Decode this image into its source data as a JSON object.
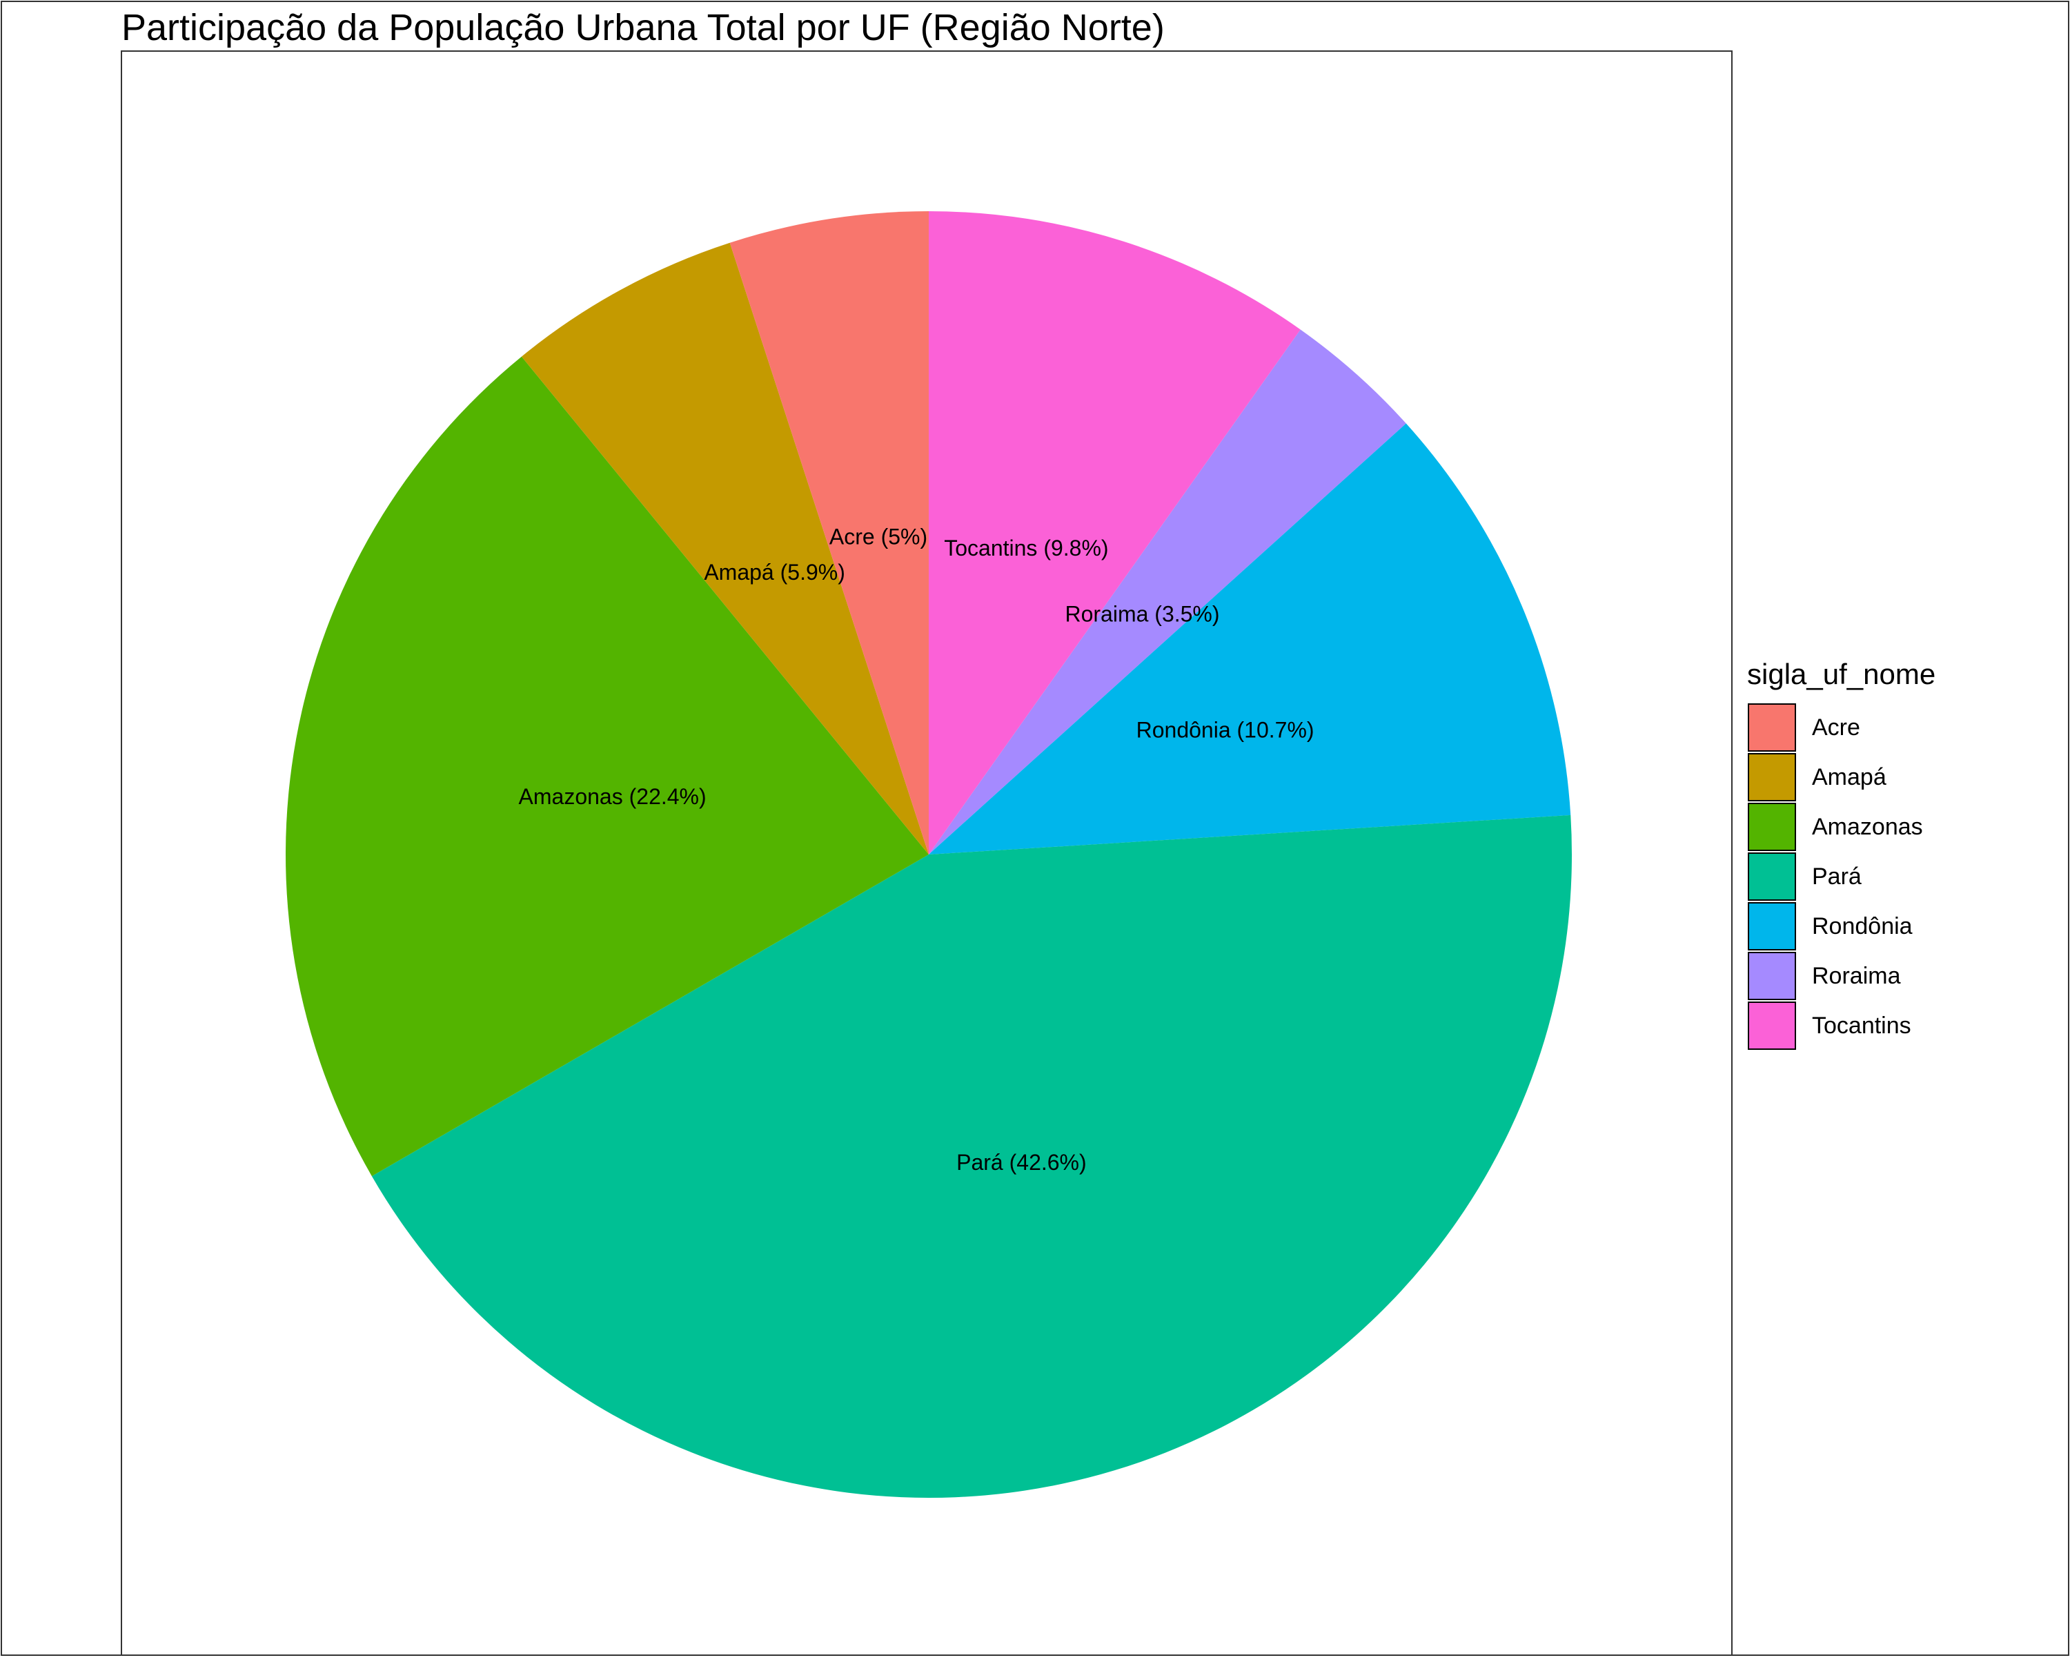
{
  "chart_data": {
    "type": "pie",
    "title": "Participação da População Urbana Total por UF (Região Norte)",
    "legend_title": "sigla_uf_nome",
    "legend_position": "right",
    "direction": "clockwise-from-top",
    "slices_in_draw_order": [
      "Tocantins",
      "Roraima",
      "Rondônia",
      "Pará",
      "Amazonas",
      "Amapá",
      "Acre"
    ],
    "categories": [
      "Acre",
      "Amapá",
      "Amazonas",
      "Pará",
      "Rondônia",
      "Roraima",
      "Tocantins"
    ],
    "values": [
      5.0,
      5.9,
      22.4,
      42.6,
      10.7,
      3.5,
      9.8
    ],
    "labels": [
      "Acre (5%)",
      "Amapá (5.9%)",
      "Amazonas (22.4%)",
      "Pará (42.6%)",
      "Rondônia (10.7%)",
      "Roraima (3.5%)",
      "Tocantins (9.8%)"
    ],
    "colors": [
      "#F8766D",
      "#C49A00",
      "#53B400",
      "#00C094",
      "#00B6EB",
      "#A58AFF",
      "#FB61D7"
    ],
    "unit": "%"
  }
}
